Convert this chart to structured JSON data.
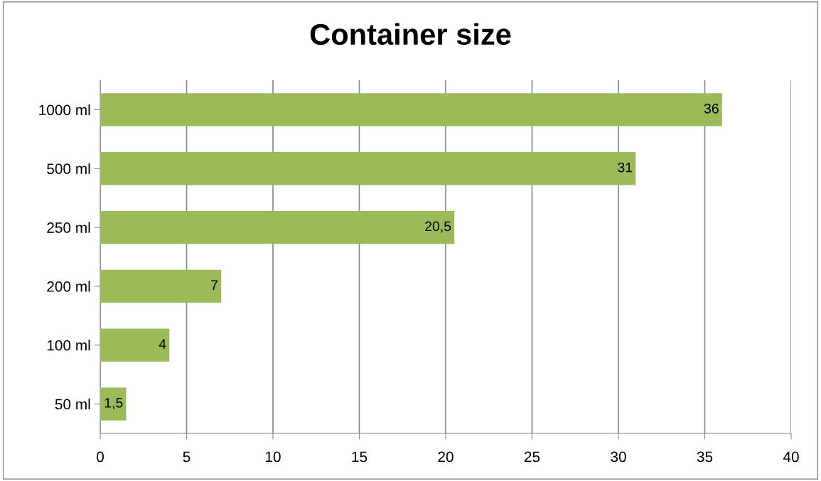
{
  "chart_data": {
    "type": "bar",
    "orientation": "horizontal",
    "title": "Container size",
    "categories": [
      "1000 ml",
      "500 ml",
      "250 ml",
      "200 ml",
      "100 ml",
      "50 ml"
    ],
    "values": [
      36,
      31,
      20.5,
      7,
      4,
      1.5
    ],
    "value_labels": [
      "36",
      "31",
      "20,5",
      "7",
      "4",
      "1,5"
    ],
    "color": "#9bbb59",
    "xlim": [
      0,
      40
    ],
    "xticks": [
      0,
      5,
      10,
      15,
      20,
      25,
      30,
      35,
      40
    ],
    "grid": "x",
    "legend": false
  }
}
